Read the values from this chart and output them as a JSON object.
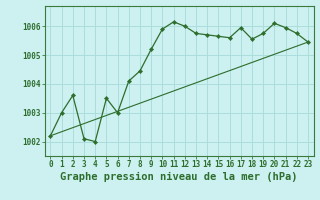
{
  "title": "Graphe pression niveau de la mer (hPa)",
  "background_color": "#cdf0f0",
  "plot_bg_color": "#cdf0f0",
  "line_color": "#2d6e2d",
  "marker_color": "#2d6e2d",
  "grid_color": "#aadddd",
  "spine_color": "#3a7a3a",
  "xlim": [
    -0.5,
    23.5
  ],
  "ylim": [
    1001.5,
    1006.7
  ],
  "xticks": [
    0,
    1,
    2,
    3,
    4,
    5,
    6,
    7,
    8,
    9,
    10,
    11,
    12,
    13,
    14,
    15,
    16,
    17,
    18,
    19,
    20,
    21,
    22,
    23
  ],
  "yticks": [
    1002,
    1003,
    1004,
    1005,
    1006
  ],
  "series1_x": [
    0,
    1,
    2,
    3,
    4,
    5,
    6,
    7,
    8,
    9,
    10,
    11,
    12,
    13,
    14,
    15,
    16,
    17,
    18,
    19,
    20,
    21,
    22,
    23
  ],
  "series1_y": [
    1002.2,
    1003.0,
    1003.6,
    1002.1,
    1002.0,
    1003.5,
    1003.0,
    1004.1,
    1004.45,
    1005.2,
    1005.9,
    1006.15,
    1006.0,
    1005.75,
    1005.7,
    1005.65,
    1005.6,
    1005.95,
    1005.55,
    1005.75,
    1006.1,
    1005.95,
    1005.75,
    1005.45
  ],
  "series2_x": [
    0,
    23
  ],
  "series2_y": [
    1002.2,
    1005.45
  ],
  "title_fontsize": 7.5,
  "tick_fontsize": 5.5,
  "tick_color": "#2d6e2d",
  "title_color": "#2d6e2d"
}
